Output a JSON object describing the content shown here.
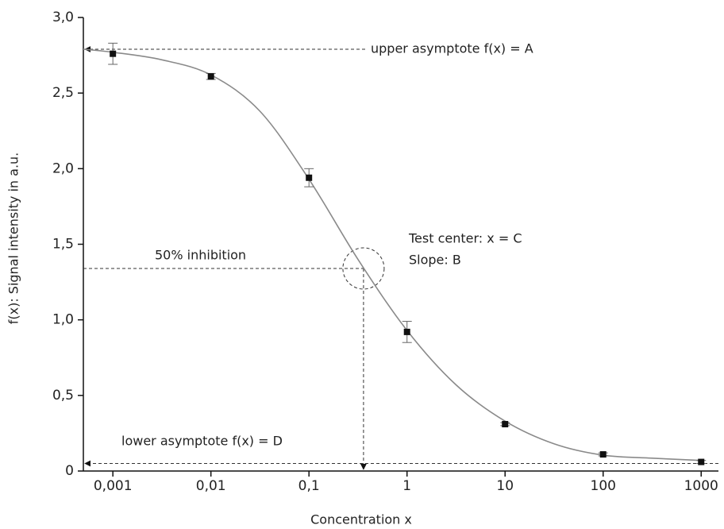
{
  "chart_data": {
    "type": "scatter",
    "xlabel": "Concentration x",
    "ylabel": "f(x): Signal intensity in a.u.",
    "log_x": true,
    "xlim": [
      0.0005,
      1500
    ],
    "ylim": [
      0,
      3
    ],
    "xticks": [
      {
        "value": 0.001,
        "label": "0,001"
      },
      {
        "value": 0.01,
        "label": "0,01"
      },
      {
        "value": 0.1,
        "label": "0,1"
      },
      1,
      10,
      100,
      1000
    ],
    "yticks": [
      0,
      {
        "value": 0.5,
        "label": "0,5"
      },
      {
        "value": 1,
        "label": "1,0"
      },
      {
        "value": 1.5,
        "label": "1,5"
      },
      {
        "value": 2,
        "label": "2,0"
      },
      {
        "value": 2.5,
        "label": "2,5"
      },
      {
        "value": 3,
        "label": "3,0"
      }
    ],
    "series": [
      {
        "color": "#111111",
        "x": [
          0.001,
          0.01,
          0.1,
          1,
          10,
          100,
          1000
        ],
        "values": [
          2.76,
          2.61,
          1.94,
          0.92,
          0.31,
          0.11,
          0.06
        ],
        "errors": [
          0.07,
          0.02,
          0.06,
          0.07,
          0.01,
          0.01,
          0.01
        ]
      }
    ],
    "fit": {
      "color": "#8a8a8a",
      "x": [
        0.0005,
        0.001,
        0.00316,
        0.01,
        0.0316,
        0.1,
        0.316,
        1,
        3.16,
        10,
        31.6,
        100,
        316,
        1000
      ],
      "values": [
        2.79,
        2.77,
        2.72,
        2.62,
        2.38,
        1.93,
        1.4,
        0.93,
        0.57,
        0.33,
        0.18,
        0.105,
        0.085,
        0.07
      ]
    },
    "annotations": {
      "upper_asymptote": {
        "label": "upper asymptote f(x) = A",
        "value": 2.79
      },
      "lower_asymptote": {
        "label": "lower asymptote f(x) = D",
        "value": 0.05
      },
      "inhibition": {
        "label": "50% inhibition",
        "x": 0.36,
        "y": 1.34
      },
      "test_center": {
        "label": "Test center: x = C",
        "slope_label": "Slope: B"
      }
    }
  }
}
